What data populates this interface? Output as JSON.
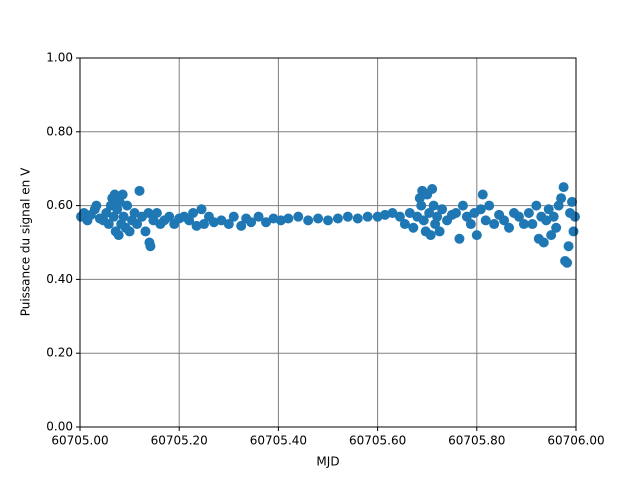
{
  "chart_data": {
    "type": "scatter",
    "x_label": "MJD",
    "y_label": "Puissance du signal en V",
    "color": "#1f77b4",
    "grid": true,
    "xlim": [
      60705.0,
      60706.0
    ],
    "xticks": [
      {
        "value": 60705.0,
        "label": "60705.00"
      },
      {
        "value": 60705.2,
        "label": "60705.20"
      },
      {
        "value": 60705.4,
        "label": "60705.40"
      },
      {
        "value": 60705.6,
        "label": "60705.60"
      },
      {
        "value": 60705.8,
        "label": "60705.80"
      },
      {
        "value": 60706.0,
        "label": "60706.00"
      }
    ],
    "ylim": [
      0,
      1
    ],
    "yticks": [
      {
        "value": 0,
        "label": "0.00"
      },
      {
        "value": 0.2,
        "label": "0.20"
      },
      {
        "value": 0.4,
        "label": "0.40"
      },
      {
        "value": 0.6,
        "label": "0.60"
      },
      {
        "value": 0.8,
        "label": "0.80"
      },
      {
        "value": 1,
        "label": "1.00"
      }
    ],
    "x": [
      60705.002,
      60705.008,
      60705.015,
      60705.022,
      60705.03,
      60705.033,
      60705.04,
      60705.047,
      60705.053,
      60705.058,
      60705.062,
      60705.065,
      60705.068,
      60705.07,
      60705.072,
      60705.075,
      60705.078,
      60705.08,
      60705.083,
      60705.086,
      60705.088,
      60705.092,
      60705.095,
      60705.1,
      60705.105,
      60705.11,
      60705.115,
      60705.12,
      60705.125,
      60705.132,
      60705.138,
      60705.14,
      60705.142,
      60705.148,
      60705.155,
      60705.162,
      60705.17,
      60705.18,
      60705.19,
      60705.2,
      60705.21,
      60705.22,
      60705.228,
      60705.235,
      60705.245,
      60705.25,
      60705.26,
      60705.27,
      60705.285,
      60705.3,
      60705.31,
      60705.325,
      60705.335,
      60705.345,
      60705.36,
      60705.375,
      60705.39,
      60705.405,
      60705.42,
      60705.44,
      60705.46,
      60705.48,
      60705.5,
      60705.52,
      60705.54,
      60705.56,
      60705.58,
      60705.6,
      60705.615,
      60705.63,
      60705.645,
      60705.655,
      60705.665,
      60705.672,
      60705.68,
      60705.685,
      60705.688,
      60705.69,
      60705.693,
      60705.697,
      60705.7,
      60705.704,
      60705.707,
      60705.71,
      60705.713,
      60705.716,
      60705.72,
      60705.725,
      60705.73,
      60705.74,
      60705.75,
      60705.758,
      60705.765,
      60705.772,
      60705.78,
      60705.788,
      60705.795,
      60705.8,
      60705.808,
      60705.812,
      60705.818,
      60705.825,
      60705.835,
      60705.845,
      60705.855,
      60705.865,
      60705.875,
      60705.885,
      60705.895,
      60705.905,
      60705.912,
      60705.92,
      60705.925,
      60705.93,
      60705.935,
      60705.94,
      60705.945,
      60705.95,
      60705.955,
      60705.96,
      60705.965,
      60705.97,
      60705.975,
      60705.978,
      60705.982,
      60705.985,
      60705.988,
      60705.992,
      60705.995,
      60705.998
    ],
    "values": [
      0.57,
      0.58,
      0.56,
      0.575,
      0.59,
      0.6,
      0.565,
      0.56,
      0.58,
      0.55,
      0.6,
      0.62,
      0.57,
      0.63,
      0.53,
      0.59,
      0.52,
      0.61,
      0.55,
      0.63,
      0.57,
      0.54,
      0.6,
      0.53,
      0.56,
      0.58,
      0.55,
      0.64,
      0.57,
      0.53,
      0.58,
      0.5,
      0.49,
      0.56,
      0.58,
      0.55,
      0.56,
      0.57,
      0.55,
      0.565,
      0.57,
      0.56,
      0.58,
      0.545,
      0.59,
      0.55,
      0.57,
      0.555,
      0.56,
      0.55,
      0.57,
      0.545,
      0.565,
      0.555,
      0.57,
      0.555,
      0.565,
      0.56,
      0.565,
      0.57,
      0.56,
      0.565,
      0.56,
      0.565,
      0.57,
      0.565,
      0.57,
      0.57,
      0.575,
      0.58,
      0.57,
      0.55,
      0.58,
      0.54,
      0.57,
      0.62,
      0.6,
      0.64,
      0.56,
      0.53,
      0.63,
      0.58,
      0.52,
      0.645,
      0.6,
      0.55,
      0.57,
      0.53,
      0.59,
      0.56,
      0.575,
      0.58,
      0.51,
      0.6,
      0.57,
      0.55,
      0.58,
      0.52,
      0.59,
      0.63,
      0.56,
      0.6,
      0.55,
      0.575,
      0.56,
      0.54,
      0.58,
      0.57,
      0.55,
      0.58,
      0.55,
      0.6,
      0.51,
      0.57,
      0.5,
      0.56,
      0.59,
      0.52,
      0.57,
      0.54,
      0.6,
      0.62,
      0.65,
      0.45,
      0.445,
      0.49,
      0.58,
      0.61,
      0.53,
      0.57
    ]
  }
}
